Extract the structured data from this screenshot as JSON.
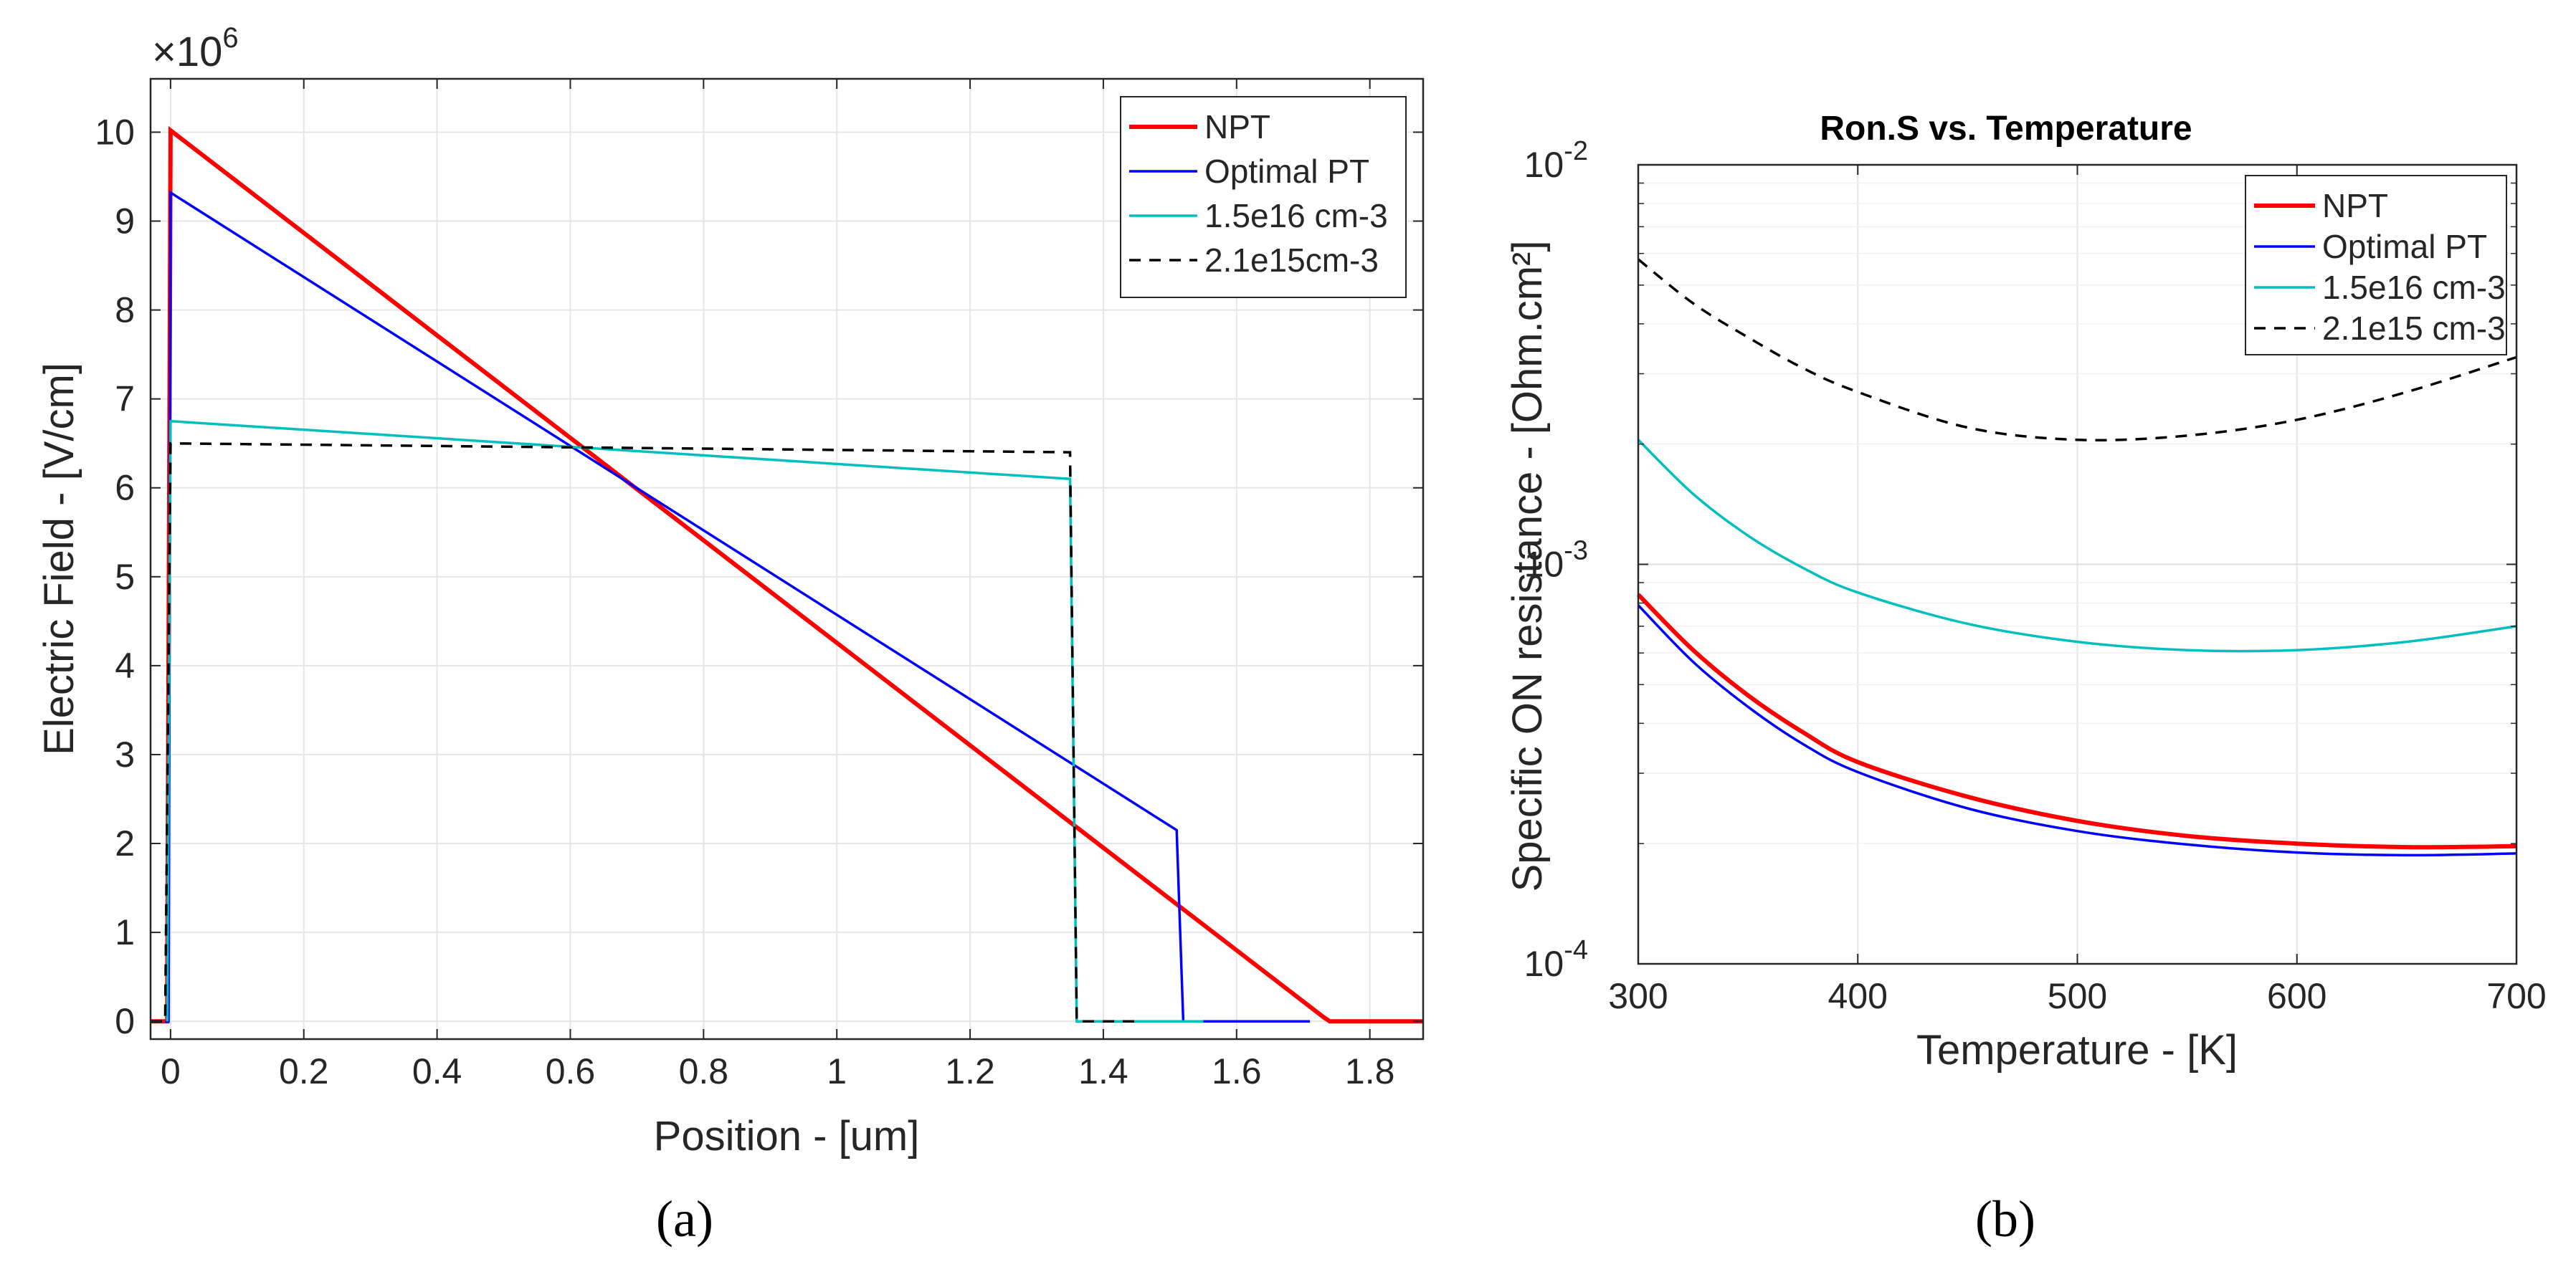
{
  "chart_data": [
    {
      "type": "line",
      "panel": "(a)",
      "title": "",
      "xlabel": "Position - [um]",
      "ylabel": "Electric Field - [V/cm]",
      "multiplier_label": "×10",
      "multiplier_exponent": "6",
      "xlim": [
        -0.03,
        1.88
      ],
      "ylim": [
        -0.2,
        10.6
      ],
      "xticks": [
        0,
        0.2,
        0.4,
        0.6,
        0.8,
        1,
        1.2,
        1.4,
        1.6,
        1.8
      ],
      "xtick_labels": [
        "0",
        "0.2",
        "0.4",
        "0.6",
        "0.8",
        "1",
        "1.2",
        "1.4",
        "1.6",
        "1.8"
      ],
      "yticks": [
        0,
        1,
        2,
        3,
        4,
        5,
        6,
        7,
        8,
        9,
        10
      ],
      "ytick_labels": [
        "0",
        "1",
        "2",
        "3",
        "4",
        "5",
        "6",
        "7",
        "8",
        "9",
        "10"
      ],
      "grid": true,
      "legend_position": "top-right",
      "series": [
        {
          "name": "NPT",
          "color": "#ff0000",
          "style": "solid",
          "width": "thick",
          "x": [
            -0.03,
            -0.005,
            0,
            1.73,
            1.74,
            1.88
          ],
          "y": [
            0,
            0,
            10.02,
            0.05,
            0,
            0
          ]
        },
        {
          "name": "Optimal PT",
          "color": "#0000ff",
          "style": "solid",
          "width": "thin",
          "x": [
            -0.008,
            -0.003,
            0,
            1.51,
            1.52,
            1.71
          ],
          "y": [
            0,
            0,
            9.32,
            2.15,
            0,
            0
          ]
        },
        {
          "name": "1.5e16 cm-3",
          "color": "#00bfbf",
          "style": "solid",
          "width": "thin",
          "x": [
            -0.005,
            0,
            1.35,
            1.36,
            1.55
          ],
          "y": [
            0,
            6.75,
            6.1,
            0,
            0
          ]
        },
        {
          "name": "2.1e15cm-3",
          "color": "#000000",
          "style": "dashed",
          "width": "thin",
          "x": [
            -0.03,
            -0.008,
            0,
            1.35,
            1.36,
            1.45
          ],
          "y": [
            0,
            0,
            6.5,
            6.4,
            0,
            0
          ]
        }
      ]
    },
    {
      "type": "line",
      "panel": "(b)",
      "title": "Ron.S vs. Temperature",
      "xlabel": "Temperature - [K]",
      "ylabel": "Specific ON resistance - [Ohm.cm²]",
      "yscale": "log",
      "xlim": [
        300,
        700
      ],
      "ylim": [
        0.0001,
        0.01
      ],
      "xticks": [
        300,
        400,
        500,
        600,
        700
      ],
      "xtick_labels": [
        "300",
        "400",
        "500",
        "600",
        "700"
      ],
      "yticks": [
        0.0001,
        0.001,
        0.01
      ],
      "ytick_bases": [
        "10",
        "10",
        "10"
      ],
      "ytick_exponents": [
        "-4",
        "-3",
        "-2"
      ],
      "grid": true,
      "legend_position": "top-right",
      "series": [
        {
          "name": "NPT",
          "color": "#ff0000",
          "style": "solid",
          "width": "thick",
          "x": [
            300,
            325,
            350,
            375,
            400,
            450,
            500,
            550,
            600,
            650,
            700
          ],
          "y": [
            0.00084,
            0.00061,
            0.00047,
            0.00038,
            0.00032,
            0.000262,
            0.000228,
            0.000209,
            0.0002,
            0.000196,
            0.000197
          ]
        },
        {
          "name": "Optimal PT",
          "color": "#0000ff",
          "style": "solid",
          "width": "thin",
          "x": [
            300,
            325,
            350,
            375,
            400,
            450,
            500,
            550,
            600,
            650,
            700
          ],
          "y": [
            0.00079,
            0.00057,
            0.00044,
            0.000355,
            0.000302,
            0.000245,
            0.000215,
            0.000199,
            0.00019,
            0.000187,
            0.000189
          ]
        },
        {
          "name": "1.5e16 cm-3",
          "color": "#00bfbf",
          "style": "solid",
          "width": "thin",
          "x": [
            300,
            325,
            350,
            375,
            400,
            450,
            500,
            550,
            600,
            650,
            700
          ],
          "y": [
            0.00205,
            0.0015,
            0.00118,
            0.00098,
            0.00085,
            0.00071,
            0.00064,
            0.00061,
            0.00061,
            0.00064,
            0.0007
          ]
        },
        {
          "name": "2.1e15 cm-3",
          "color": "#000000",
          "style": "dashed",
          "width": "thin",
          "x": [
            300,
            325,
            350,
            375,
            400,
            450,
            500,
            550,
            600,
            650,
            700
          ],
          "y": [
            0.0058,
            0.0045,
            0.0037,
            0.0031,
            0.0027,
            0.0022,
            0.00205,
            0.0021,
            0.0023,
            0.0027,
            0.0033
          ]
        }
      ]
    }
  ],
  "captions": [
    "(a)",
    "(b)"
  ]
}
